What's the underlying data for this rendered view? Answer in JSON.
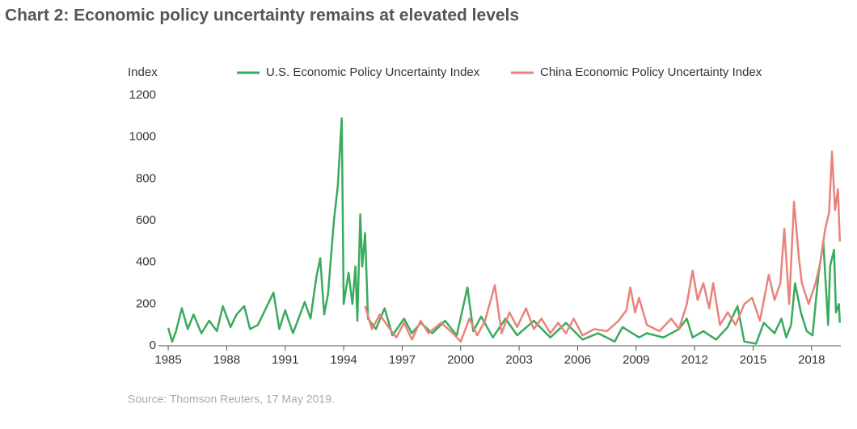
{
  "chart_data": {
    "type": "line",
    "title": "Chart 2: Economic policy uncertainty remains at elevated levels",
    "y_label": "Index",
    "source": "Source: Thomson Reuters, 17 May 2019.",
    "xlim": [
      1984.5,
      2019.5
    ],
    "xticks": [
      1985,
      1988,
      1991,
      1994,
      1997,
      2000,
      2003,
      2006,
      2009,
      2012,
      2015,
      2018
    ],
    "ylim": [
      0,
      1200
    ],
    "yticks": [
      0,
      200,
      400,
      600,
      800,
      1000,
      1200
    ],
    "legend": "top",
    "series": [
      {
        "name": "U.S. Economic Policy Uncertainty Index",
        "color": "#3aaa5c",
        "x": [
          1985.0,
          1985.2,
          1985.4,
          1985.7,
          1986.0,
          1986.3,
          1986.7,
          1987.1,
          1987.5,
          1987.8,
          1988.2,
          1988.5,
          1988.9,
          1989.2,
          1989.6,
          1990.4,
          1990.7,
          1991.0,
          1991.4,
          1992.0,
          1992.3,
          1992.6,
          1992.8,
          1993.0,
          1993.2,
          1993.5,
          1993.7,
          1993.9,
          1994.0,
          1994.25,
          1994.45,
          1994.6,
          1994.7,
          1994.85,
          1994.95,
          1995.1,
          1995.25,
          1995.65,
          1996.1,
          1996.5,
          1997.1,
          1997.5,
          1997.95,
          1998.55,
          1999.2,
          1999.8,
          2000.35,
          2000.65,
          2001.05,
          2001.65,
          2002.3,
          2002.9,
          2003.75,
          2004.6,
          2005.4,
          2006.25,
          2007.05,
          2007.9,
          2008.3,
          2009.15,
          2009.55,
          2010.4,
          2011.2,
          2011.6,
          2011.9,
          2012.45,
          2013.1,
          2013.7,
          2014.2,
          2014.55,
          2015.15,
          2015.55,
          2016.1,
          2016.45,
          2016.7,
          2016.95,
          2017.15,
          2017.45,
          2017.75,
          2018.05,
          2018.35,
          2018.6,
          2018.85,
          2018.95,
          2019.15,
          2019.25,
          2019.4,
          2019.45
        ],
        "values": [
          85,
          20,
          70,
          180,
          80,
          150,
          60,
          120,
          70,
          190,
          90,
          150,
          190,
          80,
          100,
          255,
          80,
          170,
          60,
          210,
          130,
          330,
          420,
          150,
          250,
          600,
          770,
          1090,
          200,
          350,
          200,
          380,
          120,
          630,
          380,
          540,
          130,
          80,
          180,
          50,
          130,
          60,
          110,
          60,
          120,
          50,
          280,
          70,
          140,
          40,
          130,
          50,
          120,
          40,
          110,
          30,
          60,
          20,
          90,
          40,
          60,
          40,
          80,
          130,
          40,
          70,
          30,
          90,
          190,
          20,
          10,
          110,
          60,
          130,
          40,
          100,
          300,
          160,
          70,
          50,
          340,
          500,
          100,
          380,
          460,
          160,
          200,
          110
        ]
      },
      {
        "name": "China Economic Policy Uncertainty Index",
        "color": "#e8837a",
        "x": [
          1995.1,
          1995.45,
          1995.85,
          1996.3,
          1996.7,
          1997.1,
          1997.5,
          1997.95,
          1998.35,
          1999.0,
          1999.6,
          2000.0,
          2000.45,
          2000.85,
          2001.25,
          2001.75,
          2002.1,
          2002.5,
          2002.9,
          2003.35,
          2003.75,
          2004.15,
          2004.6,
          2005.0,
          2005.4,
          2005.8,
          2006.25,
          2006.85,
          2007.5,
          2008.1,
          2008.5,
          2008.7,
          2008.95,
          2009.15,
          2009.55,
          2010.2,
          2010.8,
          2011.2,
          2011.6,
          2011.9,
          2012.15,
          2012.45,
          2012.75,
          2012.95,
          2013.3,
          2013.7,
          2014.1,
          2014.55,
          2014.95,
          2015.35,
          2015.8,
          2016.1,
          2016.4,
          2016.6,
          2016.85,
          2017.1,
          2017.35,
          2017.5,
          2017.85,
          2018.2,
          2018.45,
          2018.7,
          2018.9,
          2019.05,
          2019.2,
          2019.35,
          2019.45
        ],
        "values": [
          190,
          80,
          150,
          90,
          40,
          110,
          30,
          120,
          60,
          110,
          60,
          20,
          130,
          50,
          120,
          290,
          60,
          160,
          90,
          180,
          80,
          130,
          60,
          110,
          60,
          130,
          50,
          80,
          70,
          120,
          170,
          280,
          160,
          230,
          100,
          70,
          130,
          80,
          200,
          360,
          220,
          300,
          180,
          300,
          100,
          160,
          100,
          200,
          230,
          120,
          340,
          220,
          300,
          560,
          200,
          690,
          420,
          300,
          200,
          300,
          400,
          560,
          640,
          930,
          650,
          750,
          500
        ]
      }
    ]
  }
}
